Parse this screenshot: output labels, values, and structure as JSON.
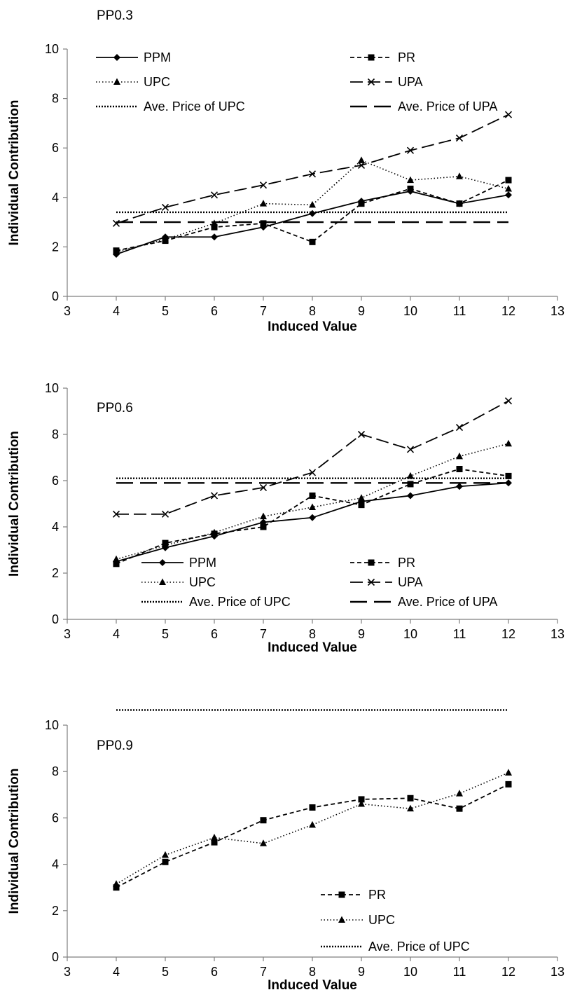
{
  "chart_data": [
    {
      "type": "line",
      "title": "PP0.3",
      "xlabel": "Induced Value",
      "ylabel": "Individual Contribution",
      "xlim": [
        3,
        13
      ],
      "ylim": [
        0,
        10
      ],
      "xticks": [
        3,
        4,
        5,
        6,
        7,
        8,
        9,
        10,
        11,
        12,
        13
      ],
      "yticks": [
        0,
        2,
        4,
        6,
        8,
        10
      ],
      "x": [
        4,
        5,
        6,
        7,
        8,
        9,
        10,
        11,
        12
      ],
      "legend_position": "top",
      "series": [
        {
          "name": "PPM",
          "style": "ppm",
          "values": [
            1.7,
            2.4,
            2.4,
            2.8,
            3.35,
            3.85,
            4.25,
            3.75,
            4.1
          ]
        },
        {
          "name": "PR",
          "style": "pr",
          "values": [
            1.85,
            2.25,
            2.8,
            2.95,
            2.2,
            3.75,
            4.35,
            3.75,
            4.7
          ]
        },
        {
          "name": "UPC",
          "style": "upc",
          "values": [
            1.8,
            2.3,
            2.95,
            3.75,
            3.7,
            5.5,
            4.7,
            4.85,
            4.35
          ]
        },
        {
          "name": "UPA",
          "style": "upa",
          "values": [
            2.95,
            3.6,
            4.1,
            4.5,
            4.95,
            5.3,
            5.9,
            6.4,
            7.35
          ]
        },
        {
          "name": "Ave. Price of UPC",
          "style": "avg_upc",
          "constant": 3.4
        },
        {
          "name": "Ave. Price of UPA",
          "style": "avg_upa",
          "constant": 3.0
        }
      ]
    },
    {
      "type": "line",
      "title": "PP0.6",
      "xlabel": "Induced Value",
      "ylabel": "Individual Contribution",
      "xlim": [
        3,
        13
      ],
      "ylim": [
        0,
        10
      ],
      "xticks": [
        3,
        4,
        5,
        6,
        7,
        8,
        9,
        10,
        11,
        12,
        13
      ],
      "yticks": [
        0,
        2,
        4,
        6,
        8,
        10
      ],
      "x": [
        4,
        5,
        6,
        7,
        8,
        9,
        10,
        11,
        12
      ],
      "legend_position": "bottom",
      "series": [
        {
          "name": "PPM",
          "style": "ppm",
          "values": [
            2.5,
            3.1,
            3.6,
            4.2,
            4.4,
            5.1,
            5.35,
            5.75,
            5.9
          ]
        },
        {
          "name": "PR",
          "style": "pr",
          "values": [
            2.4,
            3.3,
            3.7,
            4.0,
            5.35,
            4.95,
            5.85,
            6.5,
            6.2
          ]
        },
        {
          "name": "UPC",
          "style": "upc",
          "values": [
            2.6,
            3.2,
            3.75,
            4.45,
            4.85,
            5.25,
            6.2,
            7.05,
            7.6
          ]
        },
        {
          "name": "UPA",
          "style": "upa",
          "values": [
            4.55,
            4.55,
            5.35,
            5.7,
            6.35,
            8.0,
            7.35,
            8.3,
            9.45
          ]
        },
        {
          "name": "Ave. Price of UPC",
          "style": "avg_upc",
          "constant": 6.1
        },
        {
          "name": "Ave. Price of UPA",
          "style": "avg_upa",
          "constant": 5.9
        }
      ]
    },
    {
      "type": "line",
      "title": "PP0.9",
      "xlabel": "Induced Value",
      "ylabel": "Individual Contribution",
      "xlim": [
        3,
        13
      ],
      "ylim": [
        0,
        10
      ],
      "xticks": [
        3,
        4,
        5,
        6,
        7,
        8,
        9,
        10,
        11,
        12,
        13
      ],
      "yticks": [
        0,
        2,
        4,
        6,
        8,
        10
      ],
      "x": [
        4,
        5,
        6,
        7,
        8,
        9,
        10,
        11,
        12
      ],
      "legend_position": "bottom-center",
      "series": [
        {
          "name": "PR",
          "style": "pr",
          "values": [
            3.0,
            4.1,
            4.95,
            5.9,
            6.45,
            6.8,
            6.85,
            6.4,
            7.45
          ]
        },
        {
          "name": "UPC",
          "style": "upc",
          "values": [
            3.15,
            4.4,
            5.15,
            4.9,
            5.7,
            6.6,
            6.4,
            7.05,
            7.95
          ]
        },
        {
          "name": "Ave. Price of UPC",
          "style": "avg_upc",
          "constant": 10.65
        }
      ]
    }
  ]
}
